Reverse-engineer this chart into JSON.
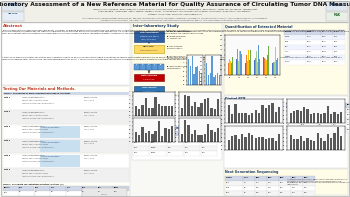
{
  "title": "Multi-Laboratory Assessment of a New Reference Material for Quality Assurance of Circulating Tumor DNA Measurements",
  "bg_color": "#f8f8f4",
  "white": "#ffffff",
  "yellow_bg": "#fffce8",
  "header_stripe": "#e8e8e0",
  "title_color": "#111111",
  "author_color": "#222222",
  "affil_color": "#444444",
  "orange_red": "#c0392b",
  "blue_section": "#1a3a6b",
  "body_text": "#1a1a1a",
  "blue1": "#1f4e98",
  "blue2": "#2e75b6",
  "orange1": "#c55a11",
  "red1": "#c00000",
  "flow_blue": "#2e5fa3",
  "flow_yellow": "#ffd966",
  "flow_orange": "#e06b1a",
  "flow_red": "#c00000",
  "bar_colors": [
    "#4472c4",
    "#ed7d31",
    "#a9d18e",
    "#ffc000",
    "#5b9bd5",
    "#70ad47"
  ],
  "dpcr_bar": "#595959",
  "ngs_bar": "#4472c4"
}
